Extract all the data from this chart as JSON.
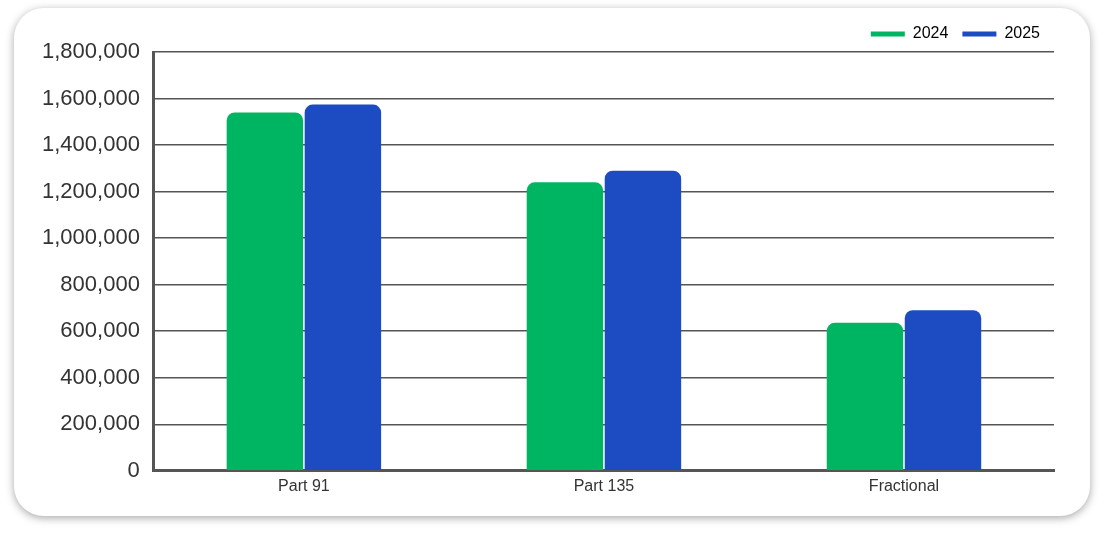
{
  "chart_data": {
    "type": "bar",
    "categories": [
      "Part 91",
      "Part 135",
      "Fractional"
    ],
    "series": [
      {
        "name": "2024",
        "color": "#00b561",
        "values": [
          1540000,
          1240000,
          636000
        ]
      },
      {
        "name": "2025",
        "color": "#1c4bc2",
        "values": [
          1574000,
          1290000,
          690000
        ]
      }
    ],
    "ylim": [
      0,
      1800000
    ],
    "yticks": [
      0,
      {
        "value": 200000,
        "label": "200,000"
      },
      {
        "value": 400000,
        "label": "400,000"
      },
      {
        "value": 600000,
        "label": "600,000"
      },
      {
        "value": 800000,
        "label": "800,000"
      },
      {
        "value": 1000000,
        "label": "1,000,000"
      },
      {
        "value": 1200000,
        "label": "1,200,000"
      },
      {
        "value": 1400000,
        "label": "1,400,000"
      },
      {
        "value": 1600000,
        "label": "1,600,000"
      },
      {
        "value": 1800000,
        "label": "1,800,000"
      }
    ],
    "grid": "y",
    "legend": "top right"
  }
}
